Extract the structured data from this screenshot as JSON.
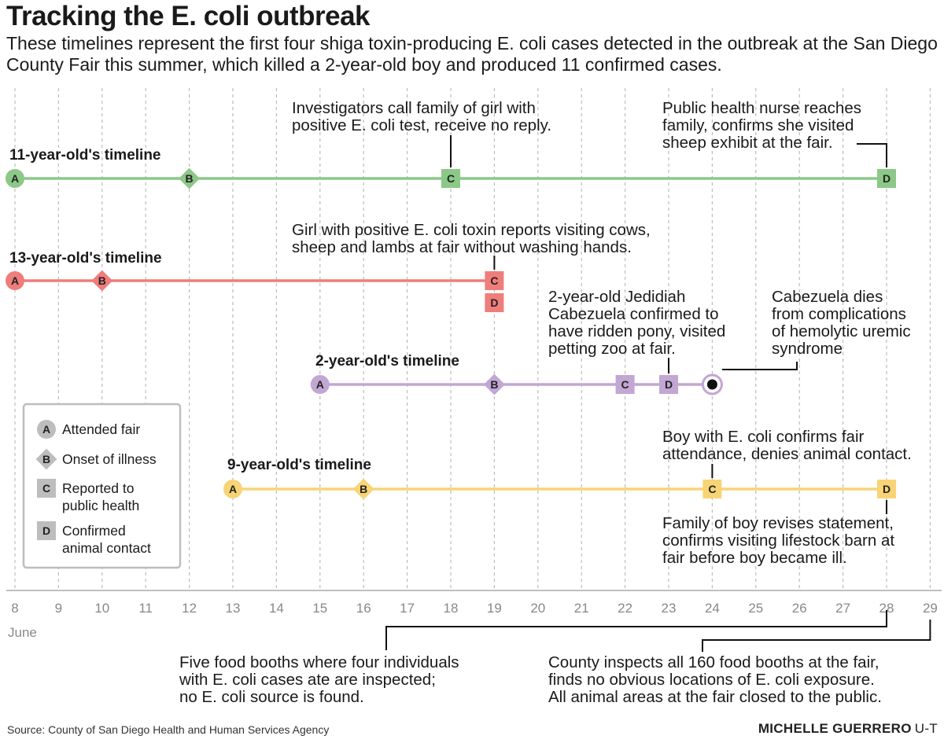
{
  "title": "Tracking the E. coli outbreak",
  "subtitle": "These timelines represent the first four shiga toxin-producing E. coli cases detected in the outbreak at the San Diego County Fair this summer, which killed a 2-year-old boy and produced 11 confirmed cases.",
  "axis": {
    "days": [
      "8",
      "9",
      "10",
      "11",
      "12",
      "13",
      "14",
      "15",
      "16",
      "17",
      "18",
      "19",
      "20",
      "21",
      "22",
      "23",
      "24",
      "25",
      "26",
      "27",
      "28",
      "29"
    ],
    "month": "June"
  },
  "timelines": [
    {
      "label": "11-year-old's timeline",
      "color": "#8cc887",
      "start_day": 8,
      "end_day": 28,
      "markers": [
        {
          "type": "circle",
          "letter": "A",
          "day": 8
        },
        {
          "type": "diamond",
          "letter": "B",
          "day": 12
        },
        {
          "type": "square",
          "letter": "C",
          "day": 18
        },
        {
          "type": "square",
          "letter": "D",
          "day": 28
        }
      ]
    },
    {
      "label": "13-year-old's timeline",
      "color": "#ef7d7b",
      "start_day": 8,
      "end_day": 19,
      "markers": [
        {
          "type": "circle",
          "letter": "A",
          "day": 8
        },
        {
          "type": "diamond",
          "letter": "B",
          "day": 10
        },
        {
          "type": "square",
          "letter": "C",
          "day": 19
        },
        {
          "type": "square",
          "letter": "D",
          "day": 19,
          "stacked": true
        }
      ]
    },
    {
      "label": "2-year-old's timeline",
      "color": "#c2a6d3",
      "start_day": 15,
      "end_day": 24,
      "markers": [
        {
          "type": "circle",
          "letter": "A",
          "day": 15
        },
        {
          "type": "diamond",
          "letter": "B",
          "day": 19
        },
        {
          "type": "square",
          "letter": "C",
          "day": 22
        },
        {
          "type": "square",
          "letter": "D",
          "day": 23
        },
        {
          "type": "death",
          "letter": "",
          "day": 24
        }
      ]
    },
    {
      "label": "9-year-old's timeline",
      "color": "#f7d475",
      "start_day": 13,
      "end_day": 28,
      "markers": [
        {
          "type": "circle",
          "letter": "A",
          "day": 13
        },
        {
          "type": "diamond",
          "letter": "B",
          "day": 16
        },
        {
          "type": "square",
          "letter": "C",
          "day": 24
        },
        {
          "type": "square",
          "letter": "D",
          "day": 28
        }
      ]
    }
  ],
  "annotations": {
    "t1_c": [
      "Investigators call family of girl with",
      "positive E. coli test, receive no reply."
    ],
    "t1_d": [
      "Public health nurse reaches",
      "family, confirms she visited",
      "sheep exhibit at the fair."
    ],
    "t2_c": [
      "Girl with positive E. coli toxin reports visiting cows,",
      "sheep and lambs at fair without washing hands."
    ],
    "t3_d": [
      "2-year-old Jedidiah",
      "Cabezuela confirmed to",
      "have ridden pony, visited",
      "petting zoo at fair."
    ],
    "t3_death": [
      "Cabezuela dies",
      "from complications",
      "of hemolytic uremic",
      "syndrome"
    ],
    "t4_c": [
      "Boy with E. coli confirms fair",
      "attendance, denies animal contact."
    ],
    "t4_d": [
      "Family of boy revises statement,",
      "confirms visiting lifestock barn at",
      "fair before boy became ill."
    ],
    "booths_28": [
      "Five food booths where four individuals",
      "with E. coli cases ate are inspected;",
      "no E. coli source is found."
    ],
    "booths_29": [
      "County inspects all 160 food booths at the fair,",
      "finds no obvious locations of E. coli exposure.",
      "All animal areas at the fair closed to the public."
    ]
  },
  "legend": {
    "items": [
      {
        "letter": "A",
        "shape": "circle",
        "lines": [
          "Attended fair"
        ]
      },
      {
        "letter": "B",
        "shape": "diamond",
        "lines": [
          "Onset of illness"
        ]
      },
      {
        "letter": "C",
        "shape": "square",
        "lines": [
          "Reported to",
          "public health"
        ]
      },
      {
        "letter": "D",
        "shape": "square",
        "lines": [
          "Confirmed",
          "animal contact"
        ]
      }
    ],
    "color": "#bdbdbd"
  },
  "source": "Source: County of San Diego Health and Human Services Agency",
  "credit": {
    "name": "MICHELLE GUERRERO",
    "org": "U-T"
  }
}
